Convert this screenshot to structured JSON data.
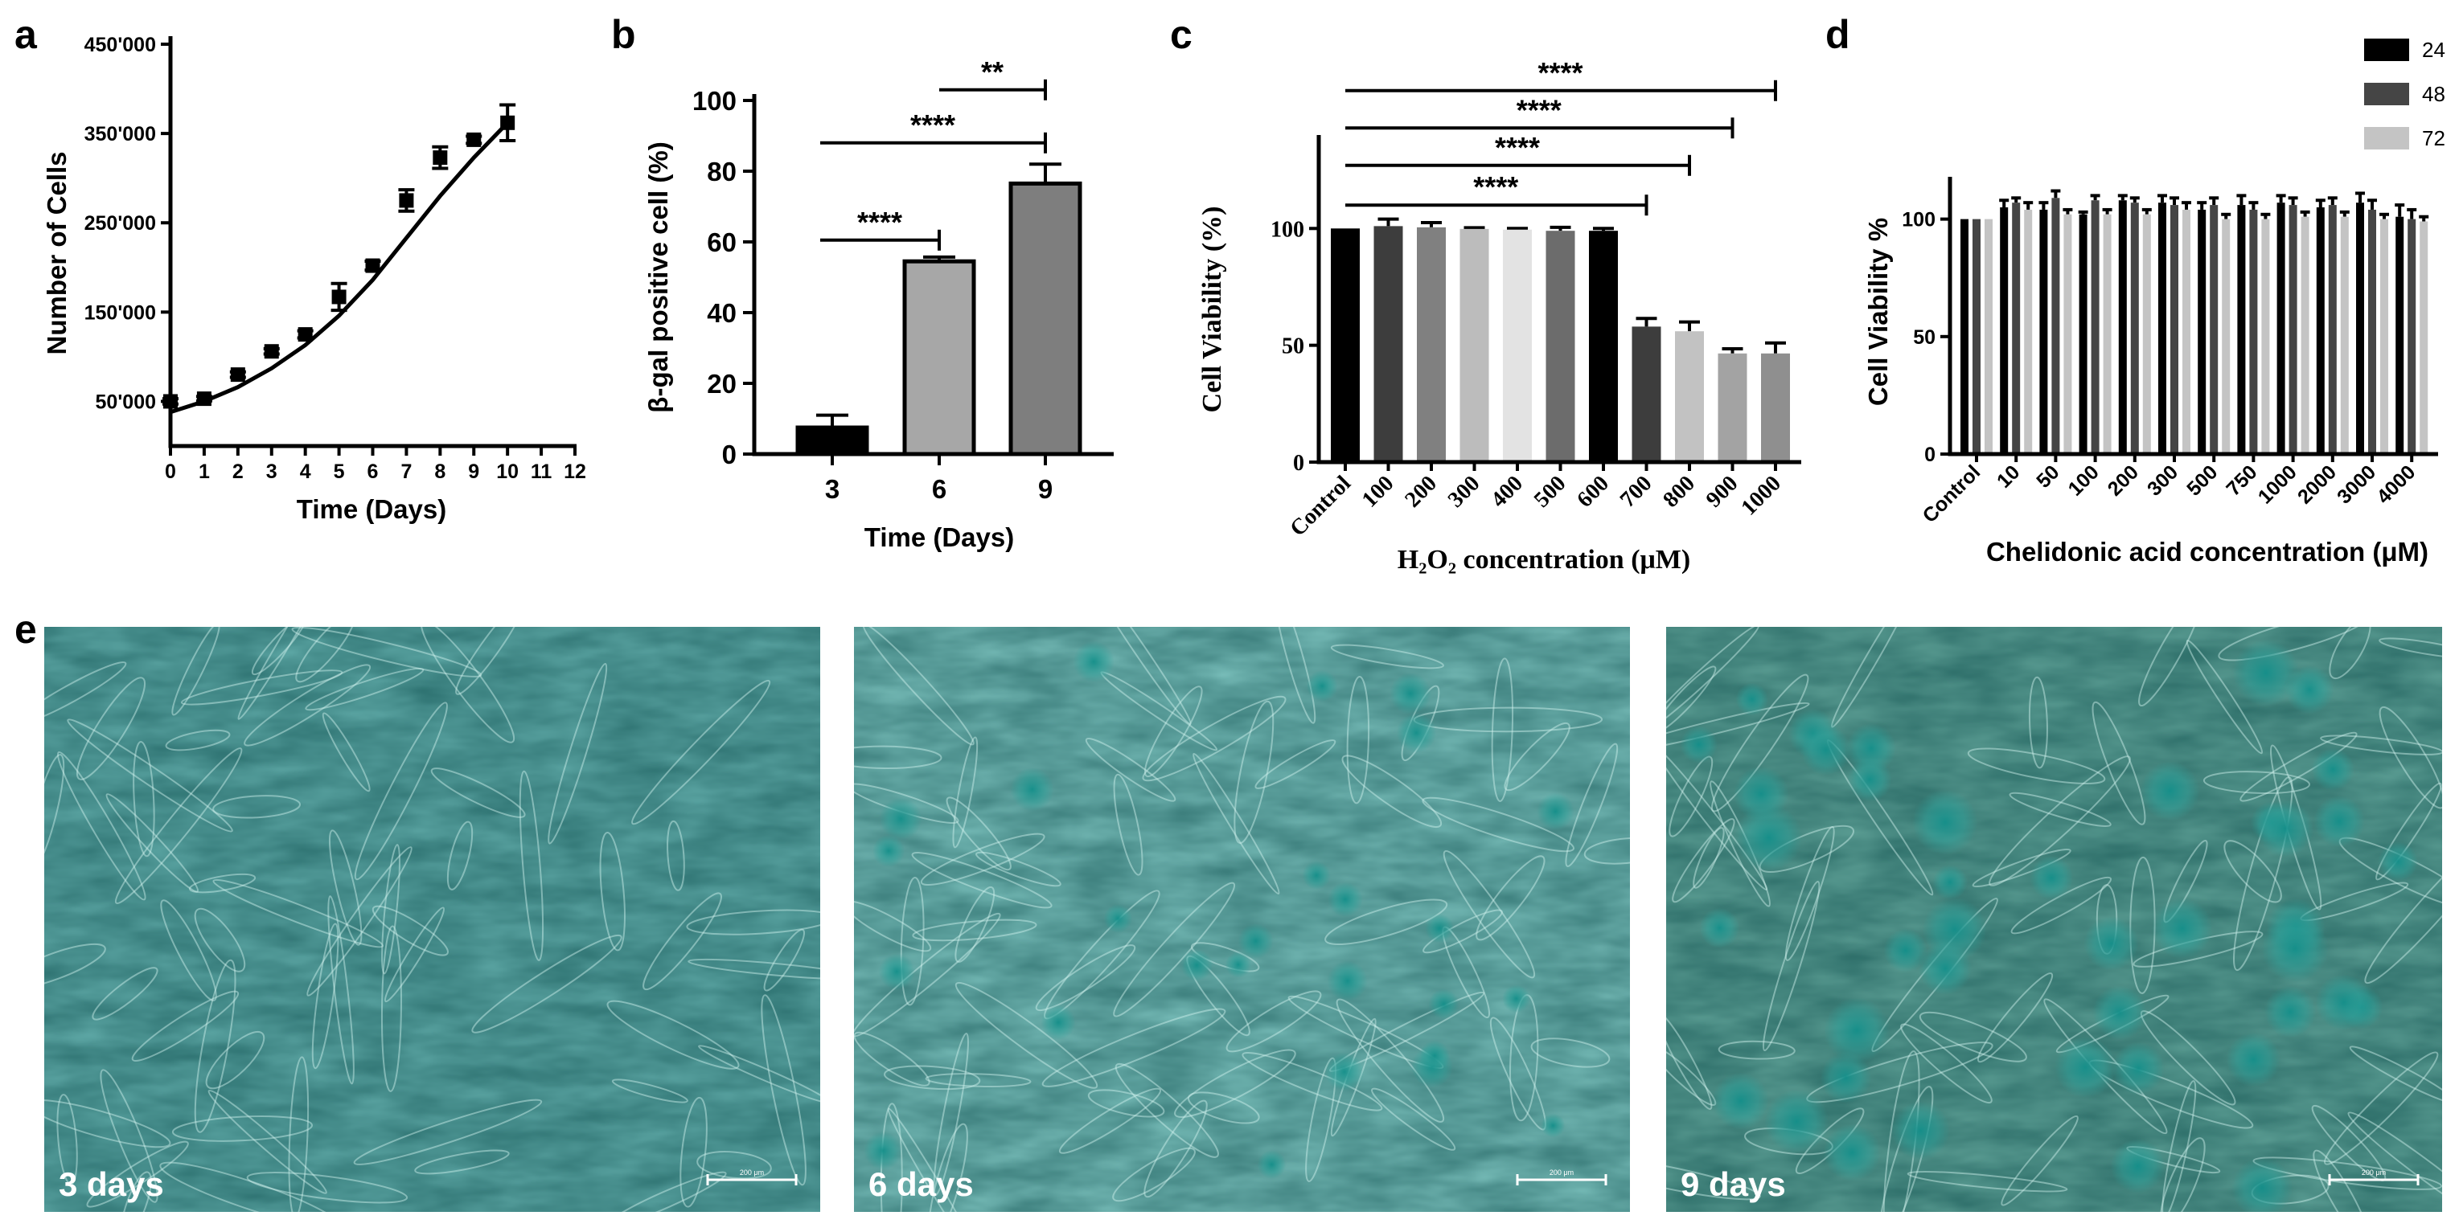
{
  "panels": {
    "a": "a",
    "b": "b",
    "c": "c",
    "d": "d",
    "e": "e"
  },
  "chart_data": [
    {
      "id": "a",
      "type": "scatter",
      "xlabel": "Time (Days)",
      "ylabel": "Number of Cells",
      "xlim": [
        0,
        12
      ],
      "ylim": [
        0,
        450000
      ],
      "x_ticks": [
        "0",
        "1",
        "2",
        "3",
        "4",
        "5",
        "6",
        "7",
        "8",
        "9",
        "10",
        "11",
        "12"
      ],
      "y_ticks": [
        "50'000",
        "150'000",
        "250'000",
        "350'000",
        "450'000"
      ],
      "y_tick_values": [
        50000,
        150000,
        250000,
        350000,
        450000
      ],
      "points": [
        {
          "x": 0,
          "y": 50000,
          "err": 3000
        },
        {
          "x": 1,
          "y": 53000,
          "err": 2500
        },
        {
          "x": 2,
          "y": 80000,
          "err": 3000
        },
        {
          "x": 3,
          "y": 106000,
          "err": 3000
        },
        {
          "x": 4,
          "y": 125000,
          "err": 4000
        },
        {
          "x": 5,
          "y": 167000,
          "err": 15000
        },
        {
          "x": 6,
          "y": 202000,
          "err": 5000
        },
        {
          "x": 7,
          "y": 275000,
          "err": 12000
        },
        {
          "x": 8,
          "y": 323000,
          "err": 12000
        },
        {
          "x": 9,
          "y": 343000,
          "err": 4000
        },
        {
          "x": 10,
          "y": 362000,
          "err": 20000
        }
      ],
      "fit_curve": [
        [
          0,
          38000
        ],
        [
          1,
          50000
        ],
        [
          2,
          66000
        ],
        [
          3,
          87000
        ],
        [
          4,
          113000
        ],
        [
          5,
          146000
        ],
        [
          6,
          186000
        ],
        [
          7,
          233000
        ],
        [
          8,
          280000
        ],
        [
          9,
          323000
        ],
        [
          10,
          362000
        ]
      ]
    },
    {
      "id": "b",
      "type": "bar",
      "xlabel": "Time (Days)",
      "ylabel": "β-gal positive cell (%)",
      "ylim": [
        0,
        100
      ],
      "y_ticks": [
        "0",
        "20",
        "40",
        "60",
        "80",
        "100"
      ],
      "categories": [
        "3",
        "6",
        "9"
      ],
      "values": [
        7.5,
        54.5,
        76.5
      ],
      "errors": [
        3.5,
        1.2,
        5.5
      ],
      "colors": [
        "#000000",
        "#a7a7a7",
        "#7e7e7e"
      ],
      "significance": [
        {
          "from": 0,
          "to": 1,
          "label": "****",
          "y": 60.5
        },
        {
          "from": 0,
          "to": 2,
          "label": "****",
          "y": 88
        },
        {
          "from": 1,
          "to": 2,
          "label": "**",
          "y": 103
        }
      ]
    },
    {
      "id": "c",
      "type": "bar",
      "xlabel": "H₂O₂ concentration (μM)",
      "ylabel": "Cell Viability (%)",
      "ylim": [
        0,
        140
      ],
      "y_ticks": [
        "0",
        "50",
        "100"
      ],
      "y_tick_values": [
        0,
        50,
        100
      ],
      "categories": [
        "Control",
        "100",
        "200",
        "300",
        "400",
        "500",
        "600",
        "700",
        "800",
        "900",
        "1000"
      ],
      "values": [
        100,
        101,
        100.5,
        99.8,
        99.5,
        99,
        99,
        58,
        56,
        46.5,
        46.5
      ],
      "errors": [
        0,
        3,
        2,
        0.5,
        0.5,
        1.5,
        1,
        3.5,
        4,
        2,
        4.5
      ],
      "colors": [
        "#000000",
        "#3d3d3d",
        "#808080",
        "#bcbcbc",
        "#e3e3e3",
        "#6c6c6c",
        "#000000",
        "#3d3d3d",
        "#c2c2c2",
        "#a3a3a3",
        "#8f8f8f"
      ],
      "significance": [
        {
          "from": 0,
          "to": 7,
          "label": "****",
          "y": 110
        },
        {
          "from": 0,
          "to": 8,
          "label": "****",
          "y": 127
        },
        {
          "from": 0,
          "to": 9,
          "label": "****",
          "y": 143
        },
        {
          "from": 0,
          "to": 10,
          "label": "****",
          "y": 159
        }
      ]
    },
    {
      "id": "d",
      "type": "bar",
      "xlabel": "Chelidonic acid concentration (μM)",
      "ylabel": "Cell Viability %",
      "ylim": [
        0,
        118
      ],
      "y_ticks": [
        "0",
        "50",
        "100"
      ],
      "y_tick_values": [
        0,
        50,
        100
      ],
      "categories": [
        "Control",
        "10",
        "50",
        "100",
        "200",
        "300",
        "500",
        "750",
        "1000",
        "2000",
        "3000",
        "4000"
      ],
      "legend_position": "top-right",
      "series": [
        {
          "name": "24",
          "color": "#000000",
          "values": [
            100,
            105,
            104,
            102,
            108,
            107,
            104,
            106,
            107,
            105,
            107,
            101
          ],
          "errors": [
            0,
            3,
            3,
            1,
            2,
            3,
            3,
            4,
            3,
            3,
            4,
            5
          ]
        },
        {
          "name": "48",
          "color": "#454545",
          "values": [
            100,
            107,
            109,
            108,
            107,
            106,
            106,
            104,
            106,
            106,
            104,
            100
          ],
          "errors": [
            0,
            2,
            3,
            2,
            2,
            3,
            3,
            3,
            3,
            3,
            4,
            4
          ]
        },
        {
          "name": "72",
          "color": "#c4c4c4",
          "values": [
            100,
            104,
            102,
            102,
            102,
            104,
            100,
            100,
            101,
            101,
            100,
            99
          ],
          "errors": [
            0,
            3,
            2,
            2,
            2,
            3,
            2,
            2,
            2,
            2,
            2,
            2
          ]
        }
      ]
    }
  ],
  "micrographs": [
    {
      "label": "3 days",
      "scale": "200 μm",
      "base": "#5fa9a7",
      "stains": 0
    },
    {
      "label": "6 days",
      "scale": "200 μm",
      "base": "#78bdb9",
      "stains": 1
    },
    {
      "label": "9 days",
      "scale": "200 μm",
      "base": "#5d9f95",
      "stains": 2
    }
  ]
}
